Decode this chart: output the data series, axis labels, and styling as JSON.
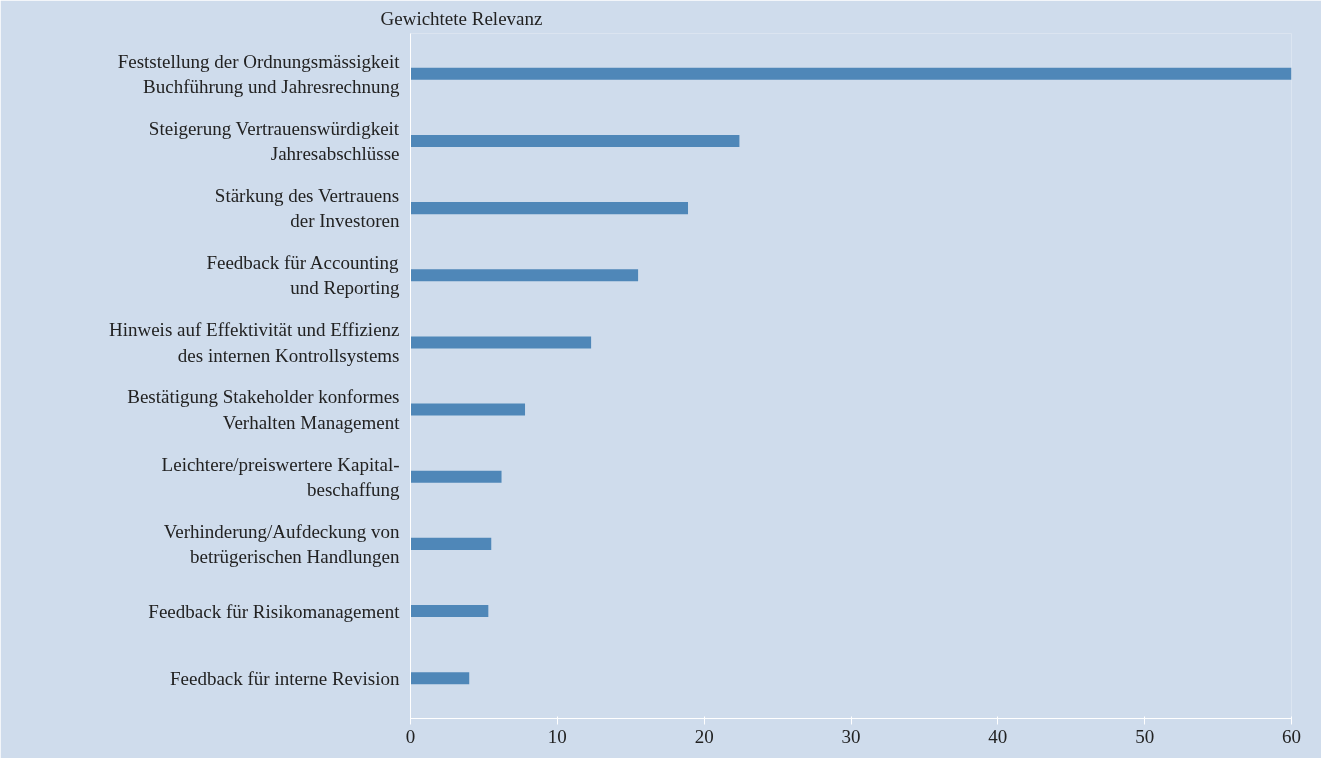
{
  "chart_data": {
    "type": "bar",
    "orientation": "horizontal",
    "xlabel": "Gewichtete Relevanz",
    "categories": [
      "Feststellung der Ordnungsmässigkeit\nBuchführung und Jahresrechnung",
      "Steigerung Vertrauenswürdigkeit\nJahresabschlüsse",
      "Stärkung des Vertrauens\nder Investoren",
      "Feedback für Accounting\nund Reporting",
      "Hinweis auf Effektivität und Effizienz\ndes internen Kontrollsystems",
      "Bestätigung Stakeholder konformes\nVerhalten Management",
      "Leichtere/preiswertere Kapital-\nbeschaffung",
      "Verhinderung/Aufdeckung von\nbetrügerischen Handlungen",
      "Feedback für Risikomanagement",
      "Feedback für interne Revision"
    ],
    "values": [
      60,
      22.4,
      18.9,
      15.5,
      12.3,
      7.8,
      6.2,
      5.5,
      5.3,
      4.0
    ],
    "color": "#4f87b8",
    "xlim": [
      0,
      60
    ],
    "xticks": [
      0,
      10,
      20,
      30,
      40,
      50,
      60
    ],
    "grid": false
  }
}
